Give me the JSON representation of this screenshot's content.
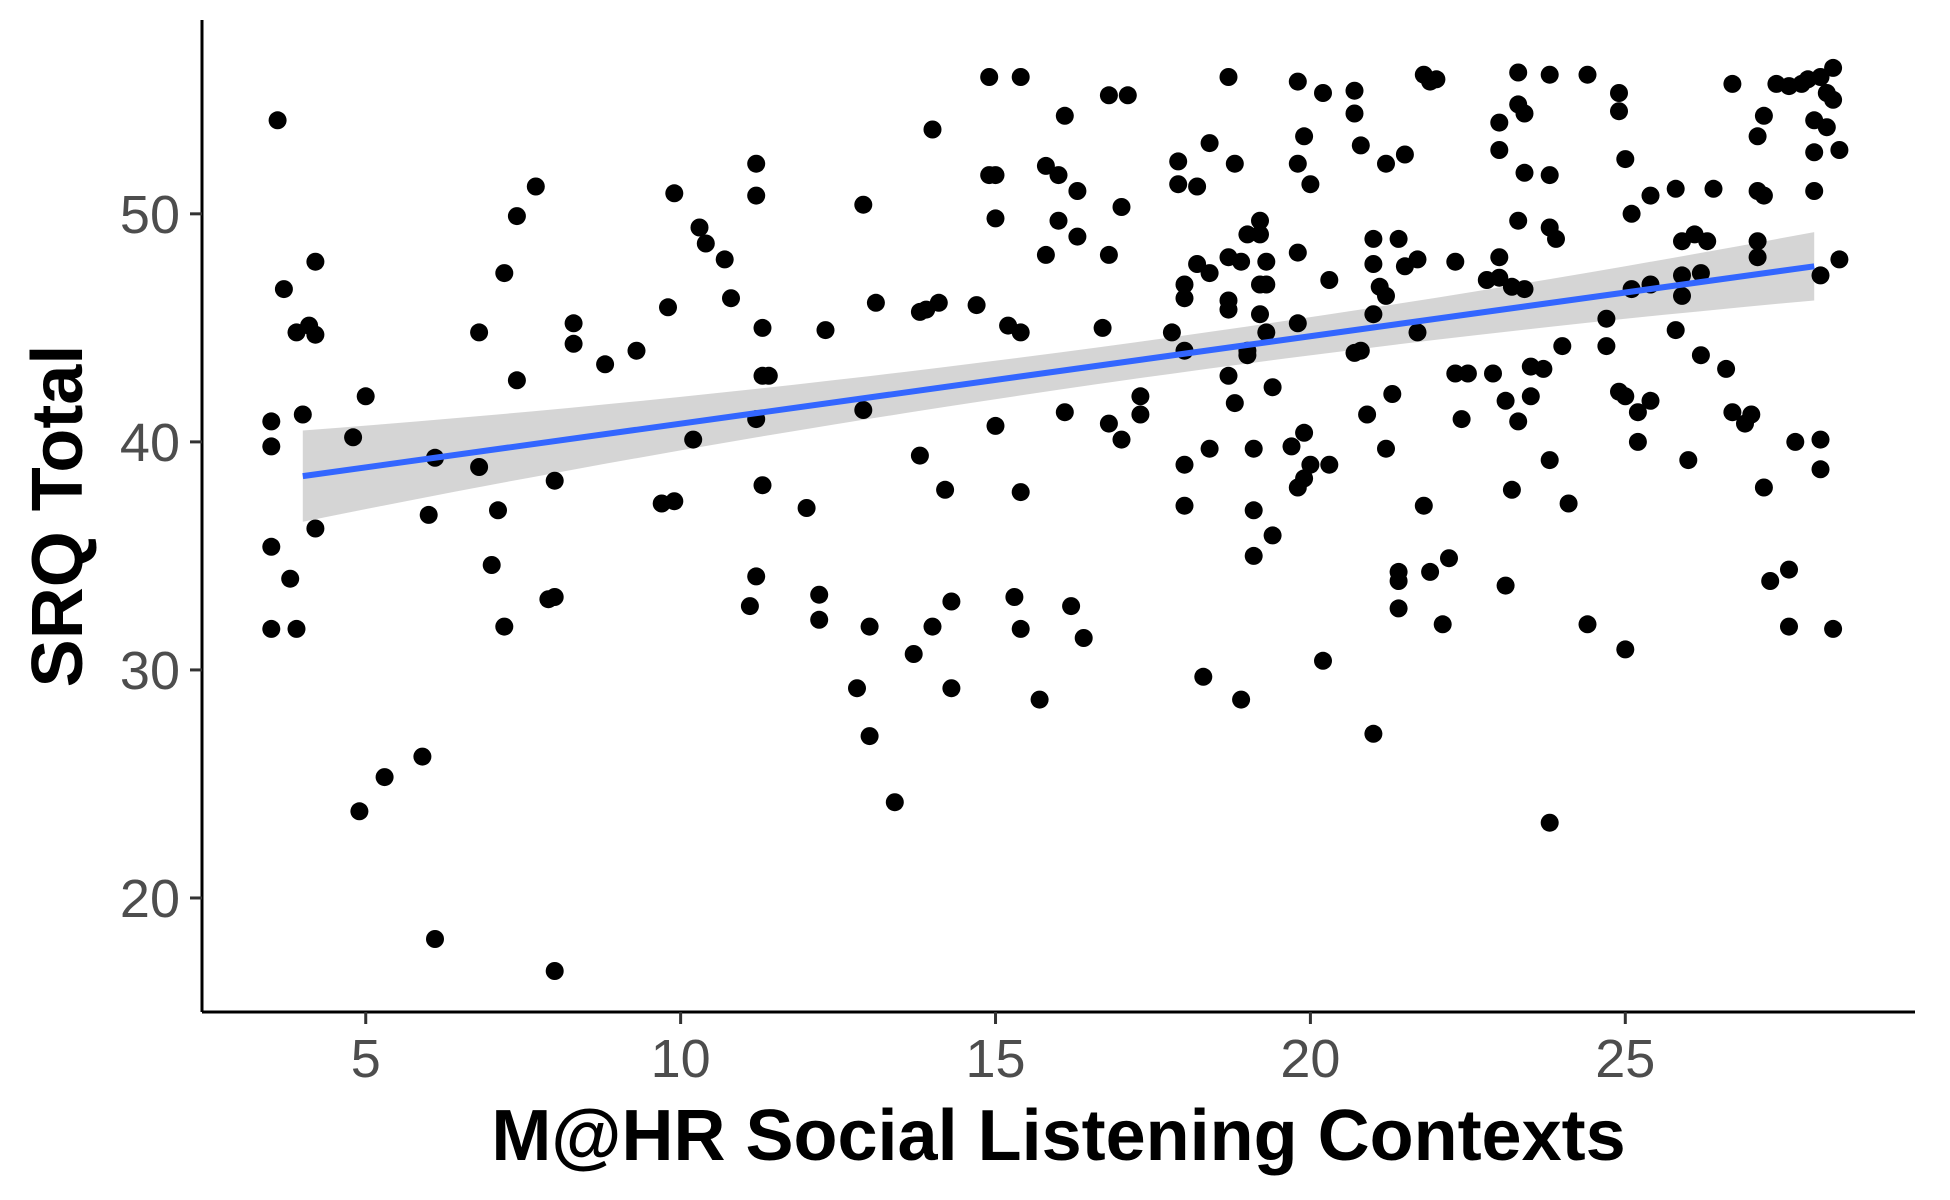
{
  "chart_data": {
    "type": "scatter",
    "title": "",
    "xlabel": "M@HR Social Listening Contexts",
    "ylabel": "SRQ Total",
    "xlim": [
      2.4,
      29.6
    ],
    "ylim": [
      15,
      58.5
    ],
    "xticks": [
      5,
      10,
      15,
      20,
      25
    ],
    "yticks": [
      20,
      30,
      40,
      50
    ],
    "x_tick_labels": [
      "5",
      "10",
      "15",
      "20",
      "25"
    ],
    "y_tick_labels": [
      "20",
      "30",
      "40",
      "50"
    ],
    "grid": false,
    "legend": "none",
    "colors": {
      "points": "#000000",
      "fit_line": "#3366FF",
      "ci_band": "#bfbfbf",
      "axis": "#000000"
    },
    "fit": {
      "method": "linear",
      "x": [
        4.0,
        28.0
      ],
      "y": [
        38.5,
        47.7
      ],
      "ci_lower": [
        36.5,
        46.2
      ],
      "ci_upper": [
        40.5,
        49.2
      ],
      "ci_mid_x": 18.0,
      "ci_mid_halfwidth": 0.8
    },
    "points": [
      [
        3.6,
        54.1
      ],
      [
        3.7,
        46.7
      ],
      [
        3.5,
        40.9
      ],
      [
        3.5,
        39.8
      ],
      [
        3.5,
        35.4
      ],
      [
        3.5,
        31.8
      ],
      [
        3.8,
        34.0
      ],
      [
        3.9,
        31.8
      ],
      [
        3.9,
        44.8
      ],
      [
        4.0,
        41.2
      ],
      [
        4.1,
        45.1
      ],
      [
        4.2,
        47.9
      ],
      [
        4.2,
        44.7
      ],
      [
        4.2,
        36.2
      ],
      [
        4.8,
        40.2
      ],
      [
        4.9,
        23.8
      ],
      [
        5.0,
        42.0
      ],
      [
        5.3,
        25.3
      ],
      [
        5.9,
        26.2
      ],
      [
        6.0,
        36.8
      ],
      [
        6.1,
        39.3
      ],
      [
        6.1,
        18.2
      ],
      [
        6.8,
        44.8
      ],
      [
        6.8,
        38.9
      ],
      [
        7.0,
        34.6
      ],
      [
        7.1,
        37.0
      ],
      [
        7.2,
        47.4
      ],
      [
        7.2,
        31.9
      ],
      [
        7.4,
        49.9
      ],
      [
        7.4,
        42.7
      ],
      [
        7.7,
        51.2
      ],
      [
        7.9,
        33.1
      ],
      [
        8.0,
        33.2
      ],
      [
        8.0,
        38.3
      ],
      [
        8.0,
        16.8
      ],
      [
        8.3,
        45.2
      ],
      [
        8.3,
        44.3
      ],
      [
        8.8,
        43.4
      ],
      [
        9.3,
        44.0
      ],
      [
        9.7,
        37.3
      ],
      [
        9.8,
        45.9
      ],
      [
        9.9,
        37.4
      ],
      [
        9.9,
        50.9
      ],
      [
        10.2,
        40.1
      ],
      [
        10.3,
        49.4
      ],
      [
        10.4,
        48.7
      ],
      [
        10.7,
        48.0
      ],
      [
        10.8,
        46.3
      ],
      [
        11.1,
        32.8
      ],
      [
        11.2,
        52.2
      ],
      [
        11.2,
        50.8
      ],
      [
        11.2,
        41.0
      ],
      [
        11.2,
        34.1
      ],
      [
        11.3,
        42.9
      ],
      [
        11.3,
        38.1
      ],
      [
        11.3,
        45.0
      ],
      [
        11.4,
        42.9
      ],
      [
        12.0,
        37.1
      ],
      [
        12.2,
        33.3
      ],
      [
        12.2,
        32.2
      ],
      [
        12.3,
        44.9
      ],
      [
        12.8,
        29.2
      ],
      [
        12.9,
        50.4
      ],
      [
        12.9,
        41.4
      ],
      [
        13.0,
        27.1
      ],
      [
        13.0,
        31.9
      ],
      [
        13.1,
        46.1
      ],
      [
        13.4,
        24.2
      ],
      [
        13.7,
        30.7
      ],
      [
        13.8,
        39.4
      ],
      [
        13.8,
        45.7
      ],
      [
        13.9,
        45.8
      ],
      [
        14.0,
        31.9
      ],
      [
        14.0,
        53.7
      ],
      [
        14.1,
        46.1
      ],
      [
        14.2,
        37.9
      ],
      [
        14.3,
        33.0
      ],
      [
        14.3,
        29.2
      ],
      [
        14.7,
        46.0
      ],
      [
        14.9,
        56.0
      ],
      [
        14.9,
        51.7
      ],
      [
        15.0,
        51.7
      ],
      [
        15.0,
        49.8
      ],
      [
        15.0,
        40.7
      ],
      [
        15.2,
        45.1
      ],
      [
        15.3,
        33.2
      ],
      [
        15.4,
        44.8
      ],
      [
        15.4,
        31.8
      ],
      [
        15.4,
        37.8
      ],
      [
        15.4,
        56.0
      ],
      [
        15.7,
        28.7
      ],
      [
        15.8,
        52.1
      ],
      [
        15.8,
        48.2
      ],
      [
        16.0,
        51.7
      ],
      [
        16.0,
        49.7
      ],
      [
        16.1,
        41.3
      ],
      [
        16.1,
        54.3
      ],
      [
        16.2,
        32.8
      ],
      [
        16.3,
        51.0
      ],
      [
        16.3,
        49.0
      ],
      [
        16.4,
        31.4
      ],
      [
        16.7,
        45.0
      ],
      [
        16.8,
        55.2
      ],
      [
        16.8,
        48.2
      ],
      [
        16.8,
        40.8
      ],
      [
        17.0,
        40.1
      ],
      [
        17.0,
        50.3
      ],
      [
        17.1,
        55.2
      ],
      [
        17.3,
        41.2
      ],
      [
        17.3,
        42.0
      ],
      [
        17.8,
        44.8
      ],
      [
        17.9,
        52.3
      ],
      [
        17.9,
        51.3
      ],
      [
        18.0,
        44.0
      ],
      [
        18.0,
        46.9
      ],
      [
        18.0,
        46.3
      ],
      [
        18.0,
        39.0
      ],
      [
        18.0,
        37.2
      ],
      [
        18.2,
        51.2
      ],
      [
        18.2,
        47.8
      ],
      [
        18.3,
        29.7
      ],
      [
        18.4,
        53.1
      ],
      [
        18.4,
        39.7
      ],
      [
        18.4,
        47.4
      ],
      [
        18.7,
        56.0
      ],
      [
        18.7,
        48.1
      ],
      [
        18.7,
        46.2
      ],
      [
        18.7,
        45.8
      ],
      [
        18.7,
        42.9
      ],
      [
        18.8,
        52.2
      ],
      [
        18.8,
        41.7
      ],
      [
        18.9,
        47.9
      ],
      [
        18.9,
        28.7
      ],
      [
        19.0,
        44.0
      ],
      [
        19.0,
        49.1
      ],
      [
        19.0,
        43.8
      ],
      [
        19.1,
        37.0
      ],
      [
        19.1,
        35.0
      ],
      [
        19.1,
        39.7
      ],
      [
        19.2,
        49.1
      ],
      [
        19.2,
        49.7
      ],
      [
        19.2,
        46.9
      ],
      [
        19.2,
        45.6
      ],
      [
        19.3,
        44.8
      ],
      [
        19.3,
        47.9
      ],
      [
        19.3,
        46.9
      ],
      [
        19.4,
        35.9
      ],
      [
        19.4,
        42.4
      ],
      [
        19.7,
        39.8
      ],
      [
        19.8,
        55.8
      ],
      [
        19.8,
        52.2
      ],
      [
        19.8,
        48.3
      ],
      [
        19.8,
        45.2
      ],
      [
        19.8,
        38.0
      ],
      [
        19.9,
        38.4
      ],
      [
        19.9,
        40.4
      ],
      [
        19.9,
        53.4
      ],
      [
        20.0,
        39.0
      ],
      [
        20.0,
        51.3
      ],
      [
        20.2,
        55.3
      ],
      [
        20.2,
        30.4
      ],
      [
        20.3,
        47.1
      ],
      [
        20.3,
        39.0
      ],
      [
        20.7,
        55.4
      ],
      [
        20.7,
        54.4
      ],
      [
        20.7,
        43.9
      ],
      [
        20.8,
        53.0
      ],
      [
        20.8,
        44.0
      ],
      [
        20.9,
        41.2
      ],
      [
        21.0,
        48.9
      ],
      [
        21.0,
        47.8
      ],
      [
        21.0,
        45.6
      ],
      [
        21.0,
        27.2
      ],
      [
        21.1,
        46.8
      ],
      [
        21.2,
        52.2
      ],
      [
        21.2,
        46.4
      ],
      [
        21.2,
        39.7
      ],
      [
        21.3,
        42.1
      ],
      [
        21.4,
        48.9
      ],
      [
        21.4,
        34.3
      ],
      [
        21.4,
        33.9
      ],
      [
        21.4,
        32.7
      ],
      [
        21.5,
        52.6
      ],
      [
        21.5,
        47.7
      ],
      [
        21.7,
        48.0
      ],
      [
        21.7,
        44.8
      ],
      [
        21.8,
        37.2
      ],
      [
        21.8,
        56.1
      ],
      [
        21.9,
        55.8
      ],
      [
        21.9,
        34.3
      ],
      [
        22.0,
        55.9
      ],
      [
        22.1,
        32.0
      ],
      [
        22.2,
        34.9
      ],
      [
        22.3,
        47.9
      ],
      [
        22.3,
        43.0
      ],
      [
        22.4,
        41.0
      ],
      [
        22.5,
        43.0
      ],
      [
        22.8,
        47.1
      ],
      [
        22.9,
        43.0
      ],
      [
        23.0,
        54.0
      ],
      [
        23.0,
        52.8
      ],
      [
        23.0,
        48.1
      ],
      [
        23.0,
        47.2
      ],
      [
        23.1,
        41.8
      ],
      [
        23.1,
        33.7
      ],
      [
        23.2,
        46.8
      ],
      [
        23.2,
        37.9
      ],
      [
        23.3,
        40.9
      ],
      [
        23.3,
        56.2
      ],
      [
        23.3,
        54.8
      ],
      [
        23.3,
        49.7
      ],
      [
        23.4,
        51.8
      ],
      [
        23.4,
        54.4
      ],
      [
        23.4,
        46.7
      ],
      [
        23.5,
        43.3
      ],
      [
        23.5,
        42.0
      ],
      [
        23.7,
        43.2
      ],
      [
        23.8,
        56.1
      ],
      [
        23.8,
        51.7
      ],
      [
        23.8,
        49.4
      ],
      [
        23.8,
        39.2
      ],
      [
        23.8,
        23.3
      ],
      [
        23.9,
        48.9
      ],
      [
        24.0,
        44.2
      ],
      [
        24.1,
        37.3
      ],
      [
        24.4,
        56.1
      ],
      [
        24.4,
        32.0
      ],
      [
        24.7,
        45.4
      ],
      [
        24.7,
        44.2
      ],
      [
        24.9,
        55.3
      ],
      [
        24.9,
        54.5
      ],
      [
        24.9,
        42.2
      ],
      [
        25.0,
        52.4
      ],
      [
        25.0,
        42.0
      ],
      [
        25.0,
        30.9
      ],
      [
        25.1,
        46.7
      ],
      [
        25.1,
        50.0
      ],
      [
        25.2,
        41.3
      ],
      [
        25.2,
        40.0
      ],
      [
        25.4,
        41.8
      ],
      [
        25.4,
        50.8
      ],
      [
        25.4,
        46.9
      ],
      [
        25.8,
        51.1
      ],
      [
        25.8,
        44.9
      ],
      [
        25.9,
        48.8
      ],
      [
        25.9,
        47.3
      ],
      [
        25.9,
        46.4
      ],
      [
        26.0,
        39.2
      ],
      [
        26.1,
        49.1
      ],
      [
        26.2,
        43.8
      ],
      [
        26.2,
        47.4
      ],
      [
        26.3,
        48.8
      ],
      [
        26.4,
        51.1
      ],
      [
        26.6,
        43.2
      ],
      [
        26.7,
        55.7
      ],
      [
        26.7,
        41.3
      ],
      [
        26.9,
        40.8
      ],
      [
        27.0,
        41.2
      ],
      [
        27.1,
        51.0
      ],
      [
        27.1,
        48.8
      ],
      [
        27.1,
        48.1
      ],
      [
        27.1,
        53.4
      ],
      [
        27.2,
        50.8
      ],
      [
        27.2,
        54.3
      ],
      [
        27.2,
        38.0
      ],
      [
        27.3,
        33.9
      ],
      [
        27.4,
        55.7
      ],
      [
        27.6,
        34.4
      ],
      [
        27.6,
        31.9
      ],
      [
        27.6,
        55.6
      ],
      [
        27.7,
        40.0
      ],
      [
        27.8,
        55.7
      ],
      [
        27.9,
        55.9
      ],
      [
        28.0,
        54.1
      ],
      [
        28.0,
        52.7
      ],
      [
        28.0,
        51.0
      ],
      [
        28.1,
        56.0
      ],
      [
        28.1,
        47.3
      ],
      [
        28.1,
        40.1
      ],
      [
        28.1,
        38.8
      ],
      [
        28.2,
        55.3
      ],
      [
        28.2,
        53.8
      ],
      [
        28.3,
        56.4
      ],
      [
        28.3,
        55.0
      ],
      [
        28.4,
        52.8
      ],
      [
        28.4,
        48.0
      ],
      [
        28.3,
        31.8
      ]
    ]
  }
}
